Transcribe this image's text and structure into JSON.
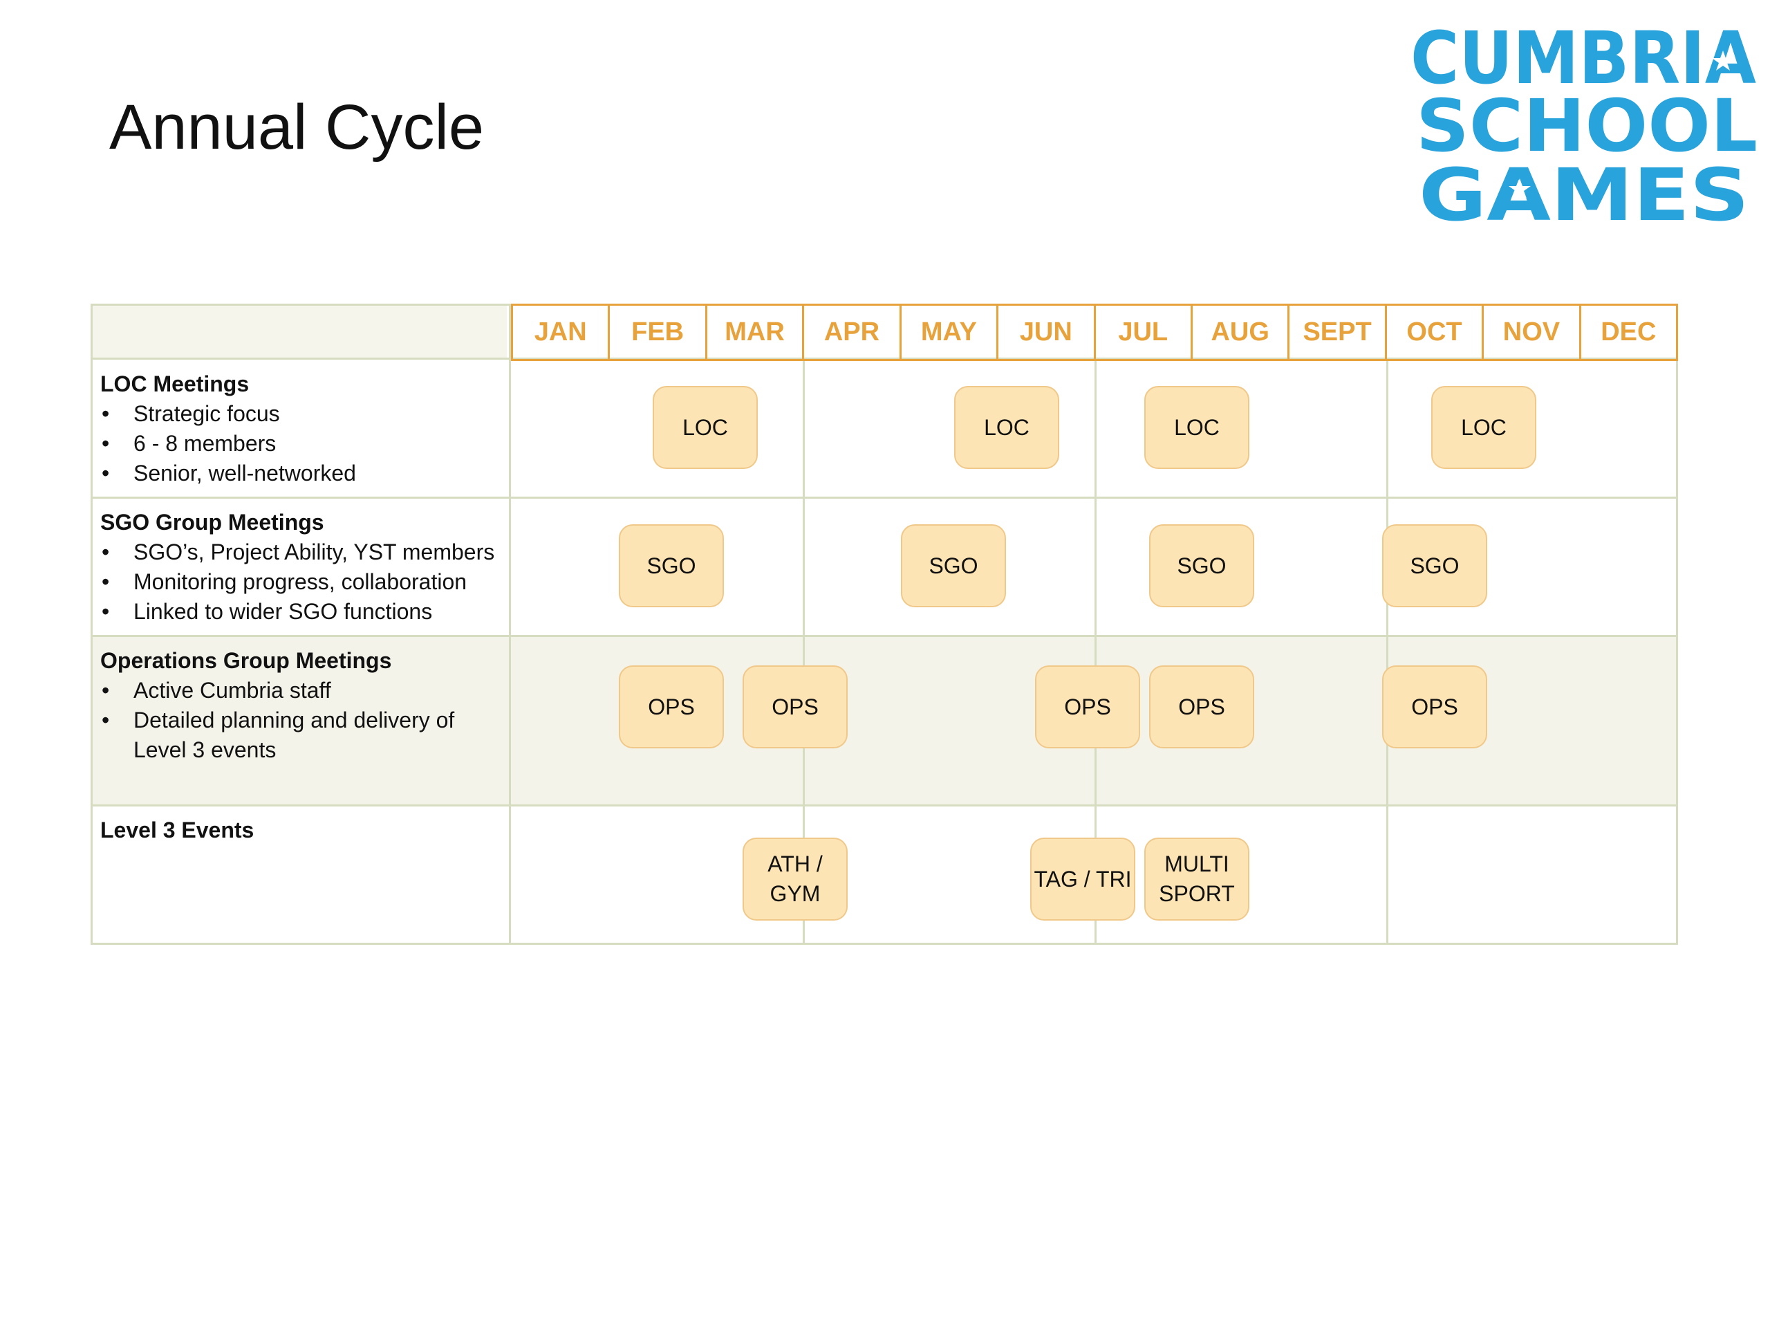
{
  "title": "Annual Cycle",
  "logo": {
    "text_lines": [
      "CUMBRIA",
      "SCHOOL",
      "GAMES"
    ],
    "color": "#29a3db"
  },
  "colors": {
    "month_header": "#e8a23b",
    "grid_line": "#d6dcbf",
    "event_fill": "#fde4b4",
    "event_border": "#f0c98a",
    "shaded_row": "#f4f3ea"
  },
  "months": [
    "JAN",
    "FEB",
    "MAR",
    "APR",
    "MAY",
    "JUN",
    "JUL",
    "AUG",
    "SEPT",
    "OCT",
    "NOV",
    "DEC"
  ],
  "rows": [
    {
      "heading": "LOC Meetings",
      "bullets": [
        "Strategic focus",
        "6 - 8 members",
        "Senior, well-networked"
      ],
      "events": [
        {
          "label": "LOC",
          "month": 2.0
        },
        {
          "label": "LOC",
          "month": 5.1
        },
        {
          "label": "LOC",
          "month": 7.05
        },
        {
          "label": "LOC",
          "month": 10.0
        }
      ]
    },
    {
      "heading": "SGO Group Meetings",
      "bullets": [
        "SGO’s, Project Ability, YST members",
        "Monitoring progress, collaboration",
        "Linked to wider SGO  functions"
      ],
      "events": [
        {
          "label": "SGO",
          "month": 1.65
        },
        {
          "label": "SGO",
          "month": 4.55
        },
        {
          "label": "SGO",
          "month": 7.1
        },
        {
          "label": "SGO",
          "month": 9.5
        }
      ]
    },
    {
      "heading": "Operations Group Meetings",
      "bullets": [
        "Active Cumbria staff",
        "Detailed planning and delivery of Level 3 events"
      ],
      "events": [
        {
          "label": "OPS",
          "month": 1.65
        },
        {
          "label": "OPS",
          "month": 2.92
        },
        {
          "label": "OPS",
          "month": 5.93
        },
        {
          "label": "OPS",
          "month": 7.1
        },
        {
          "label": "OPS",
          "month": 9.5
        }
      ]
    },
    {
      "heading": "Level 3 Events",
      "bullets": [],
      "events": [
        {
          "label": "ATH / GYM",
          "month": 2.92
        },
        {
          "label": "TAG / TRI",
          "month": 5.88
        },
        {
          "label": "MULTI SPORT",
          "month": 7.05
        }
      ]
    }
  ]
}
